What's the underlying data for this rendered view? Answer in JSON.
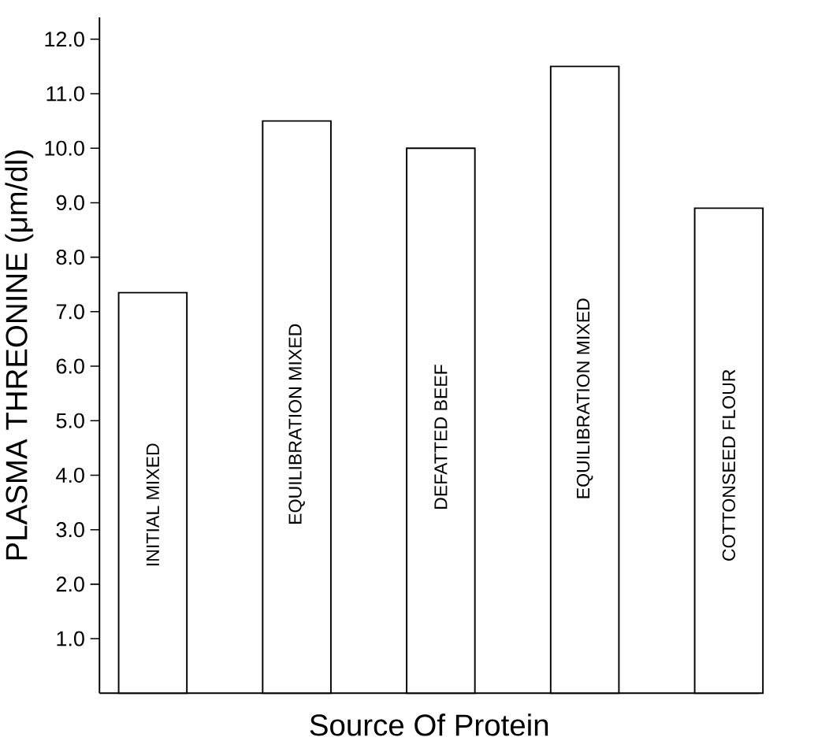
{
  "chart_data": {
    "type": "bar",
    "categories": [
      "INITIAL MIXED",
      "EQUILIBRATION MIXED",
      "DEFATTED BEEF",
      "EQUILIBRATION MIXED",
      "COTTONSEED FLOUR"
    ],
    "values": [
      7.35,
      10.5,
      10.0,
      11.5,
      8.9
    ],
    "color": "#000000",
    "xlabel": "Source Of Protein",
    "ylabel": "PLASMA THREONINE (μm/dl)",
    "ylim": [
      0,
      12.4
    ],
    "yticks": [
      {
        "value": 1,
        "label": "1.0"
      },
      {
        "value": 2,
        "label": "2.0"
      },
      {
        "value": 3,
        "label": "3.0"
      },
      {
        "value": 4,
        "label": "4.0"
      },
      {
        "value": 5,
        "label": "5.0"
      },
      {
        "value": 6,
        "label": "6.0"
      },
      {
        "value": 7,
        "label": "7.0"
      },
      {
        "value": 8,
        "label": "8.0"
      },
      {
        "value": 9,
        "label": "9.0"
      },
      {
        "value": 10,
        "label": "10.0"
      },
      {
        "value": 11,
        "label": "11.0"
      },
      {
        "value": 12,
        "label": "12.0"
      }
    ]
  }
}
